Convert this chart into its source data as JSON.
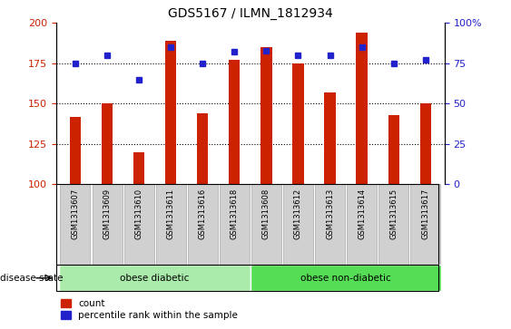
{
  "title": "GDS5167 / ILMN_1812934",
  "samples": [
    "GSM1313607",
    "GSM1313609",
    "GSM1313610",
    "GSM1313611",
    "GSM1313616",
    "GSM1313618",
    "GSM1313608",
    "GSM1313612",
    "GSM1313613",
    "GSM1313614",
    "GSM1313615",
    "GSM1313617"
  ],
  "counts": [
    142,
    150,
    120,
    189,
    144,
    177,
    185,
    175,
    157,
    194,
    143,
    150
  ],
  "percentile_ranks": [
    75,
    80,
    65,
    85,
    75,
    82,
    83,
    80,
    80,
    85,
    75,
    77
  ],
  "bar_color": "#cc2200",
  "dot_color": "#2222cc",
  "ylim_left": [
    100,
    200
  ],
  "ylim_right": [
    0,
    100
  ],
  "yticks_left": [
    100,
    125,
    150,
    175,
    200
  ],
  "yticks_right": [
    0,
    25,
    50,
    75,
    100
  ],
  "ytick_right_labels": [
    "0",
    "25",
    "50",
    "75",
    "100%"
  ],
  "grid_values": [
    125,
    150,
    175
  ],
  "groups": [
    {
      "label": "obese diabetic",
      "start": 0,
      "end": 6,
      "color": "#aaeaaa"
    },
    {
      "label": "obese non-diabetic",
      "start": 6,
      "end": 12,
      "color": "#55dd55"
    }
  ],
  "group_label": "disease state",
  "legend_items": [
    {
      "label": "count",
      "color": "#cc2200"
    },
    {
      "label": "percentile rank within the sample",
      "color": "#2222cc"
    }
  ],
  "bar_width": 0.35,
  "tick_area_color": "#d0d0d0",
  "tick_border_color": "#aaaaaa"
}
